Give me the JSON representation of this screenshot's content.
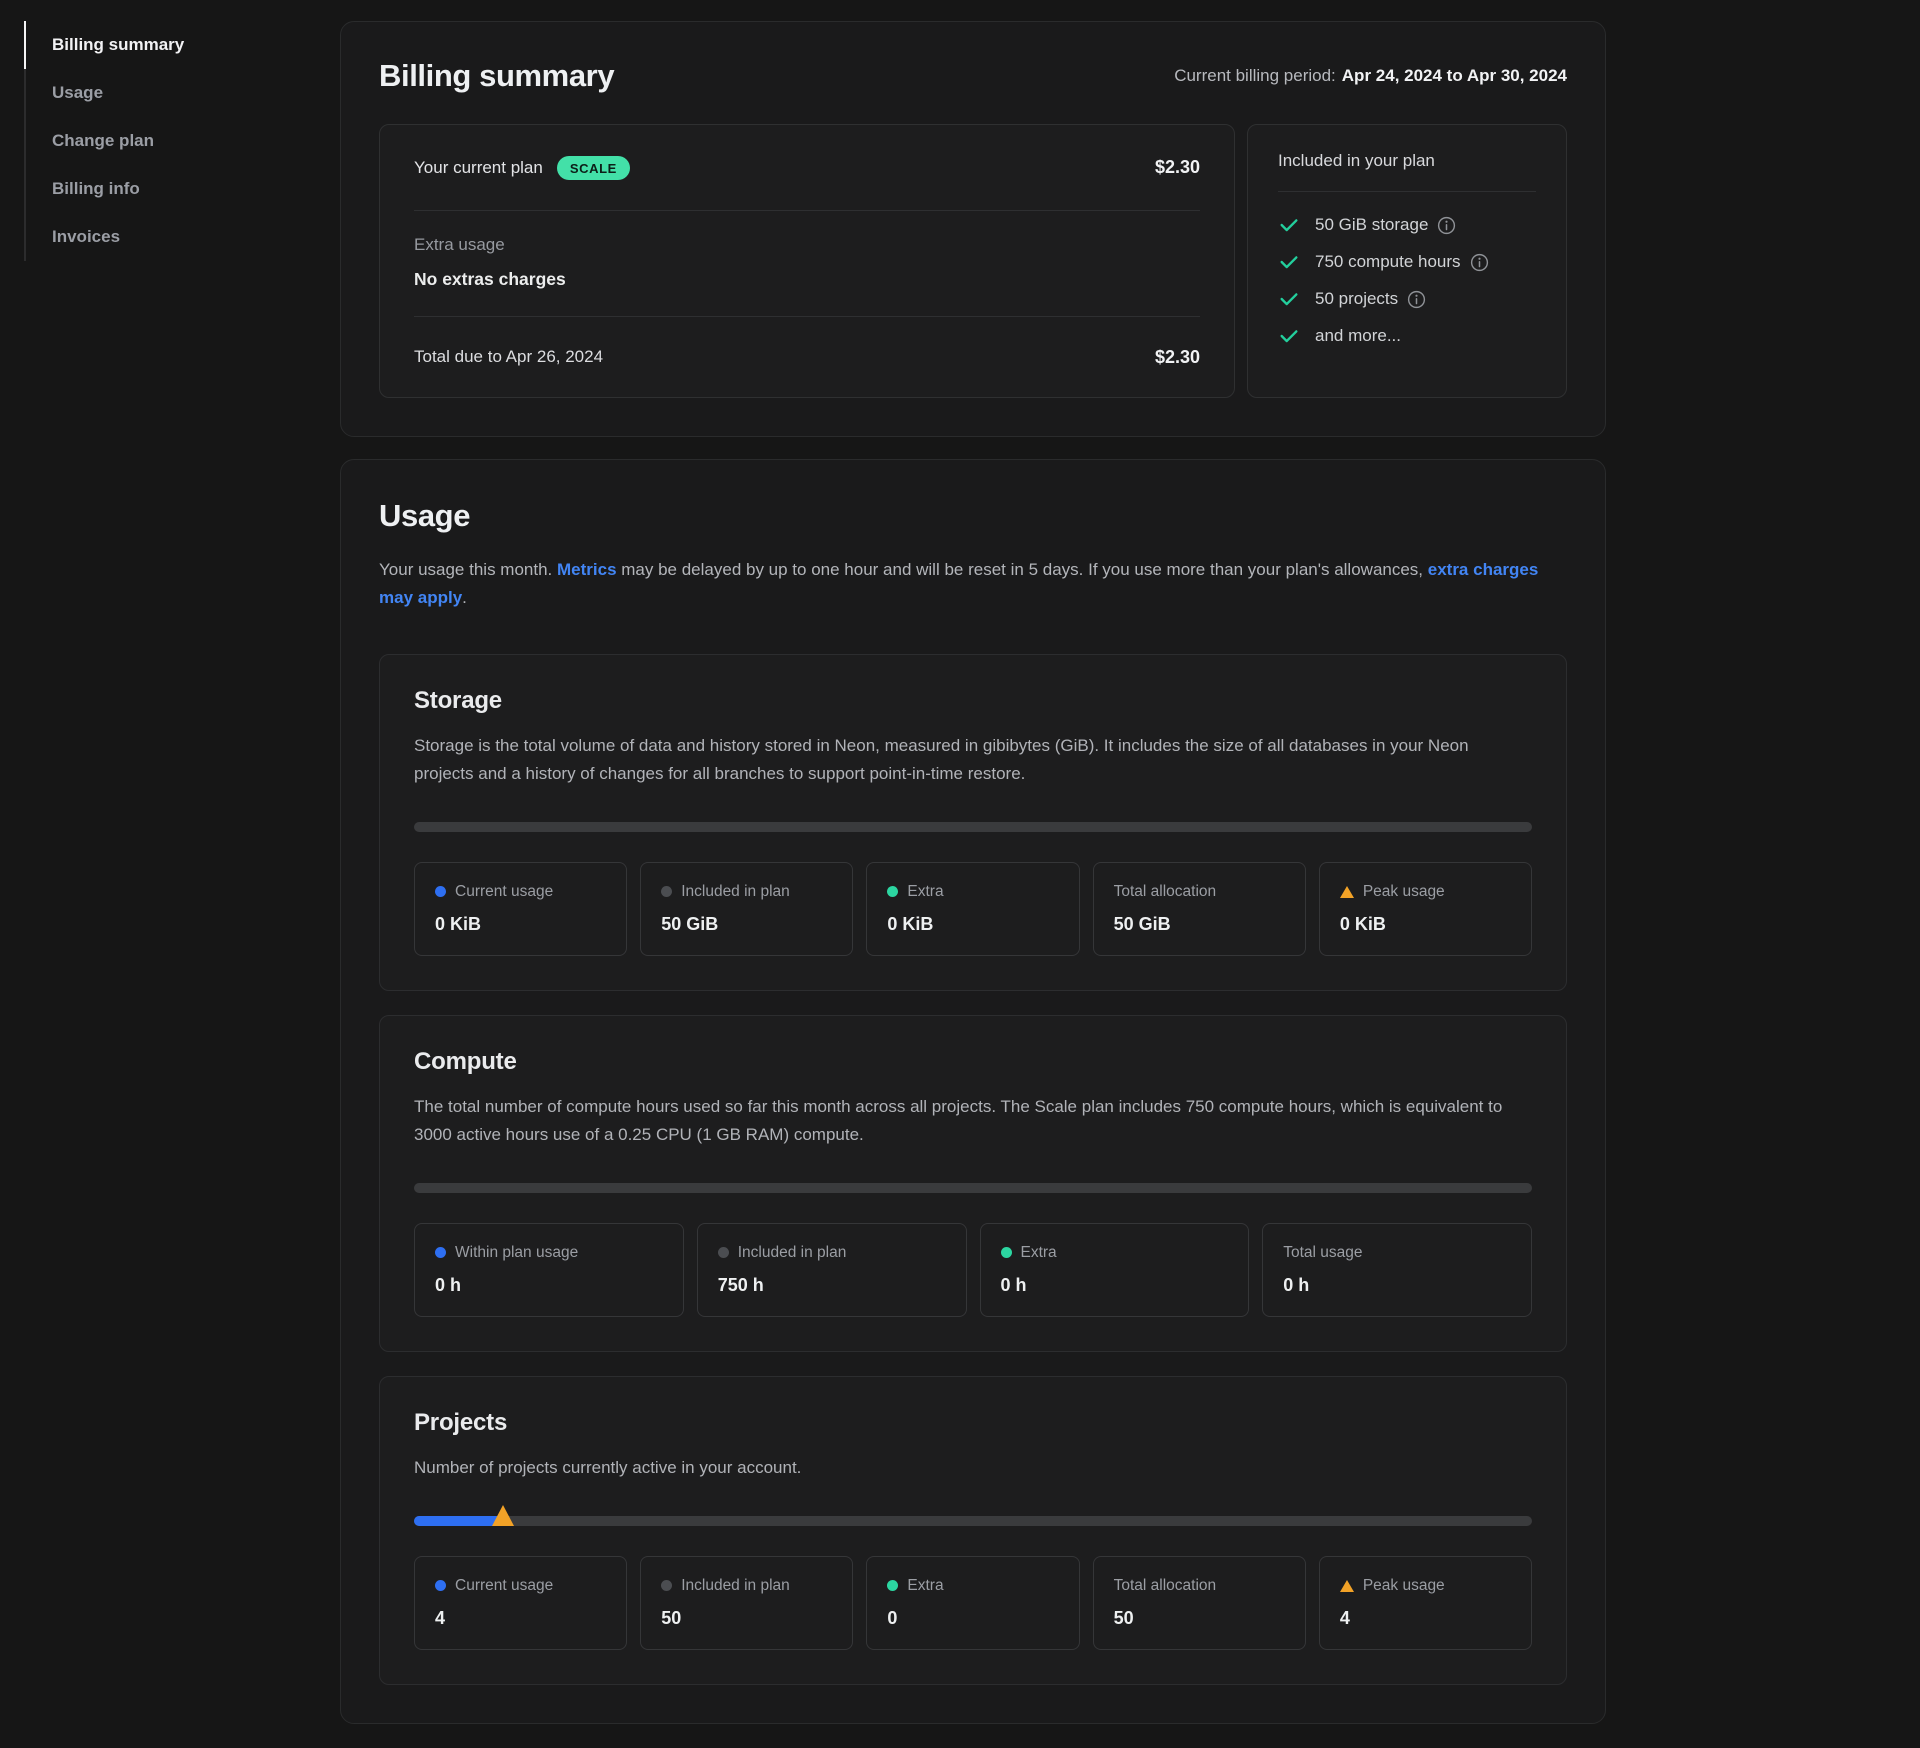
{
  "sidebar": {
    "items": [
      {
        "label": "Billing summary",
        "active": true
      },
      {
        "label": "Usage",
        "active": false
      },
      {
        "label": "Change plan",
        "active": false
      },
      {
        "label": "Billing info",
        "active": false
      },
      {
        "label": "Invoices",
        "active": false
      }
    ]
  },
  "billing_summary": {
    "title": "Billing summary",
    "period_label": "Current billing period:",
    "period_value": "Apr 24, 2024 to Apr 30, 2024",
    "plan_row": {
      "label": "Your current plan",
      "badge": "SCALE",
      "amount": "$2.30"
    },
    "extra_usage": {
      "label": "Extra usage",
      "value": "No extras charges"
    },
    "total_row": {
      "label": "Total due to Apr 26, 2024",
      "amount": "$2.30"
    },
    "included": {
      "title": "Included in your plan",
      "items": [
        {
          "label": "50 GiB storage",
          "info": true
        },
        {
          "label": "750 compute hours",
          "info": true
        },
        {
          "label": "50 projects",
          "info": true
        },
        {
          "label": "and more...",
          "info": false
        }
      ]
    }
  },
  "usage": {
    "title": "Usage",
    "intro": {
      "part1": "Your usage this month. ",
      "link1": "Metrics",
      "part2": " may be delayed by up to one hour and will be reset in 5 days. If you use more than your plan's allowances, ",
      "link2": "extra charges may apply",
      "part3": "."
    },
    "sections": [
      {
        "title": "Storage",
        "description": "Storage is the total volume of data and history stored in Neon, measured in gibibytes (GiB). It includes the size of all databases in your Neon projects and a history of changes for all branches to support point-in-time restore.",
        "progress": {
          "fill_percent": 0
        },
        "stats": [
          {
            "label": "Current usage",
            "value": "0 KiB",
            "dot": "blue"
          },
          {
            "label": "Included in plan",
            "value": "50 GiB",
            "dot": "gray"
          },
          {
            "label": "Extra",
            "value": "0 KiB",
            "dot": "green"
          },
          {
            "label": "Total allocation",
            "value": "50 GiB",
            "dot": "none"
          },
          {
            "label": "Peak usage",
            "value": "0 KiB",
            "dot": "triangle"
          }
        ]
      },
      {
        "title": "Compute",
        "description": "The total number of compute hours used so far this month across all projects. The Scale plan includes 750 compute hours, which is equivalent to 3000 active hours use of a 0.25 CPU (1 GB RAM) compute.",
        "progress": {
          "fill_percent": 0
        },
        "stats": [
          {
            "label": "Within plan usage",
            "value": "0 h",
            "dot": "blue"
          },
          {
            "label": "Included in plan",
            "value": "750 h",
            "dot": "gray"
          },
          {
            "label": "Extra",
            "value": "0 h",
            "dot": "green"
          },
          {
            "label": "Total usage",
            "value": "0 h",
            "dot": "none"
          }
        ]
      },
      {
        "title": "Projects",
        "description": "Number of projects currently active in your account.",
        "progress": {
          "fill_percent": 8,
          "marker_percent": 8
        },
        "stats": [
          {
            "label": "Current usage",
            "value": "4",
            "dot": "blue"
          },
          {
            "label": "Included in plan",
            "value": "50",
            "dot": "gray"
          },
          {
            "label": "Extra",
            "value": "0",
            "dot": "green"
          },
          {
            "label": "Total allocation",
            "value": "50",
            "dot": "none"
          },
          {
            "label": "Peak usage",
            "value": "4",
            "dot": "triangle"
          }
        ]
      }
    ]
  },
  "colors": {
    "badge_green": "#43e0a8",
    "check_green": "#23cf9d",
    "link_blue": "#4285f4",
    "usage_blue": "#2e6ff2",
    "peak_orange": "#f2a227",
    "included_gray": "#4b4d51",
    "extra_green": "#2cd6a1"
  }
}
